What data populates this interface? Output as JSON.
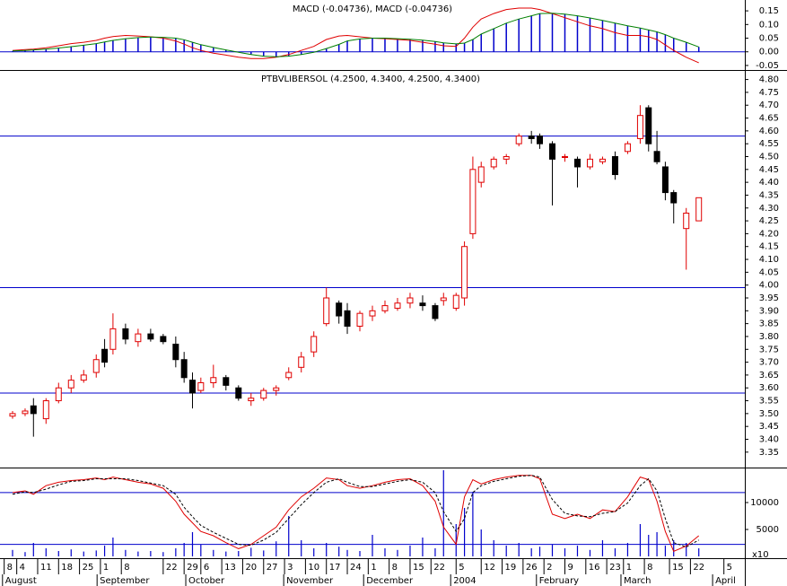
{
  "chart_data": [
    {
      "type": "macd",
      "title": "MACD (-0.04736), MACD (-0.04736)",
      "x": [
        0,
        3,
        5,
        8,
        11,
        14,
        17,
        20,
        22,
        24,
        27,
        30,
        33,
        36,
        39,
        41,
        43,
        45,
        48,
        51,
        54,
        57,
        60,
        63,
        66,
        69,
        72,
        75,
        78,
        80,
        83,
        86,
        89,
        92,
        95,
        98,
        101,
        103,
        106,
        108,
        110,
        112,
        115,
        118,
        121,
        124,
        126,
        129,
        132,
        135,
        138,
        141,
        144,
        147,
        150,
        152,
        154,
        156,
        158,
        161,
        164
      ],
      "series": [
        {
          "color": "#e00000",
          "values": [
            0.005,
            0.008,
            0.01,
            0.015,
            0.022,
            0.03,
            0.035,
            0.042,
            0.05,
            0.056,
            0.06,
            0.058,
            0.055,
            0.05,
            0.04,
            0.028,
            0.015,
            0.005,
            -0.005,
            -0.012,
            -0.02,
            -0.025,
            -0.025,
            -0.02,
            -0.01,
            0.005,
            0.02,
            0.045,
            0.058,
            0.06,
            0.055,
            0.05,
            0.048,
            0.045,
            0.042,
            0.035,
            0.028,
            0.022,
            0.02,
            0.05,
            0.09,
            0.12,
            0.14,
            0.155,
            0.16,
            0.16,
            0.155,
            0.14,
            0.125,
            0.11,
            0.095,
            0.085,
            0.07,
            0.06,
            0.06,
            0.055,
            0.045,
            0.025,
            0.005,
            -0.02,
            -0.04
          ]
        },
        {
          "color": "#008000",
          "histogram_color": "#0000cc",
          "values": [
            0.003,
            0.005,
            0.007,
            0.01,
            0.014,
            0.019,
            0.024,
            0.03,
            0.036,
            0.042,
            0.048,
            0.052,
            0.054,
            0.053,
            0.05,
            0.044,
            0.035,
            0.026,
            0.016,
            0.007,
            -0.002,
            -0.01,
            -0.016,
            -0.018,
            -0.016,
            -0.01,
            -0.002,
            0.012,
            0.027,
            0.04,
            0.047,
            0.05,
            0.05,
            0.048,
            0.046,
            0.043,
            0.038,
            0.033,
            0.029,
            0.032,
            0.045,
            0.065,
            0.085,
            0.105,
            0.12,
            0.132,
            0.14,
            0.141,
            0.138,
            0.132,
            0.124,
            0.115,
            0.105,
            0.095,
            0.087,
            0.08,
            0.073,
            0.063,
            0.05,
            0.035,
            0.018
          ]
        }
      ],
      "xlim": [
        -3,
        175
      ],
      "ylim": [
        -0.06,
        0.17
      ],
      "yticks": [
        0.15,
        {
          "value": 0.1,
          "label": "0.10"
        },
        0.05,
        {
          "value": 0,
          "label": "0.00"
        },
        -0.05
      ],
      "hlines": [
        0
      ],
      "hline_color": "#0000cc"
    },
    {
      "type": "candlestick",
      "title": "PTBVLIBERSOL (4.2500, 4.3400, 4.2500, 4.3400)",
      "x": [
        0,
        3,
        5,
        8,
        11,
        14,
        17,
        20,
        22,
        24,
        27,
        30,
        33,
        36,
        39,
        41,
        43,
        45,
        48,
        51,
        54,
        57,
        60,
        63,
        66,
        69,
        72,
        75,
        78,
        80,
        83,
        86,
        89,
        92,
        95,
        98,
        101,
        103,
        106,
        108,
        110,
        112,
        115,
        118,
        121,
        124,
        126,
        129,
        132,
        135,
        138,
        141,
        144,
        147,
        150,
        152,
        154,
        156,
        158,
        161,
        164
      ],
      "open": [
        3.49,
        3.5,
        3.53,
        3.48,
        3.55,
        3.6,
        3.63,
        3.66,
        3.75,
        3.75,
        3.83,
        3.78,
        3.81,
        3.8,
        3.77,
        3.71,
        3.63,
        3.59,
        3.62,
        3.64,
        3.6,
        3.55,
        3.56,
        3.59,
        3.64,
        3.68,
        3.74,
        3.85,
        3.93,
        3.9,
        3.84,
        3.88,
        3.9,
        3.91,
        3.93,
        3.93,
        3.92,
        3.94,
        3.91,
        3.95,
        4.2,
        4.4,
        4.46,
        4.49,
        4.55,
        4.58,
        4.58,
        4.55,
        4.5,
        4.49,
        4.46,
        4.48,
        4.5,
        4.52,
        4.57,
        4.69,
        4.52,
        4.46,
        4.36,
        4.22,
        4.25
      ],
      "high": [
        3.51,
        3.52,
        3.56,
        3.56,
        3.62,
        3.65,
        3.67,
        3.73,
        3.79,
        3.89,
        3.85,
        3.83,
        3.83,
        3.81,
        3.8,
        3.74,
        3.66,
        3.64,
        3.69,
        3.65,
        3.61,
        3.58,
        3.6,
        3.61,
        3.68,
        3.74,
        3.82,
        3.99,
        3.94,
        3.93,
        3.9,
        3.92,
        3.94,
        3.95,
        3.97,
        3.96,
        3.93,
        3.97,
        3.97,
        4.17,
        4.5,
        4.48,
        4.5,
        4.51,
        4.59,
        4.6,
        4.59,
        4.56,
        4.51,
        4.5,
        4.51,
        4.5,
        4.52,
        4.56,
        4.7,
        4.7,
        4.6,
        4.48,
        4.37,
        4.3,
        4.34
      ],
      "low": [
        3.48,
        3.49,
        3.41,
        3.46,
        3.54,
        3.58,
        3.62,
        3.64,
        3.68,
        3.73,
        3.77,
        3.76,
        3.78,
        3.77,
        3.68,
        3.62,
        3.52,
        3.58,
        3.6,
        3.59,
        3.55,
        3.53,
        3.55,
        3.57,
        3.63,
        3.66,
        3.72,
        3.84,
        3.85,
        3.81,
        3.82,
        3.86,
        3.89,
        3.9,
        3.91,
        3.9,
        3.86,
        3.92,
        3.9,
        3.92,
        4.18,
        4.38,
        4.45,
        4.47,
        4.54,
        4.55,
        4.53,
        4.31,
        4.48,
        4.38,
        4.45,
        4.47,
        4.41,
        4.51,
        4.55,
        4.52,
        4.47,
        4.33,
        4.24,
        4.06,
        4.25
      ],
      "close": [
        3.5,
        3.51,
        3.5,
        3.55,
        3.6,
        3.63,
        3.65,
        3.71,
        3.7,
        3.83,
        3.79,
        3.81,
        3.79,
        3.78,
        3.71,
        3.64,
        3.58,
        3.62,
        3.64,
        3.61,
        3.56,
        3.56,
        3.59,
        3.6,
        3.66,
        3.72,
        3.8,
        3.95,
        3.88,
        3.84,
        3.89,
        3.9,
        3.92,
        3.93,
        3.95,
        3.92,
        3.87,
        3.95,
        3.96,
        4.15,
        4.45,
        4.46,
        4.49,
        4.5,
        4.58,
        4.57,
        4.55,
        4.49,
        4.5,
        4.46,
        4.49,
        4.49,
        4.43,
        4.55,
        4.66,
        4.55,
        4.48,
        4.36,
        4.32,
        4.28,
        4.34
      ],
      "up_color": "#e00000",
      "down_color": "#000000",
      "xlim": [
        -3,
        175
      ],
      "ylim": [
        3.29,
        4.83
      ],
      "yticks": [
        {
          "value": 4.8,
          "label": "4.80"
        },
        4.75,
        {
          "value": 4.7,
          "label": "4.70"
        },
        4.65,
        {
          "value": 4.6,
          "label": "4.60"
        },
        4.55,
        {
          "value": 4.5,
          "label": "4.50"
        },
        4.45,
        {
          "value": 4.4,
          "label": "4.40"
        },
        4.35,
        {
          "value": 4.3,
          "label": "4.30"
        },
        4.25,
        {
          "value": 4.2,
          "label": "4.20"
        },
        4.15,
        {
          "value": 4.1,
          "label": "4.10"
        },
        4.05,
        {
          "value": 4.0,
          "label": "4.00"
        },
        3.95,
        {
          "value": 3.9,
          "label": "3.90"
        },
        3.85,
        {
          "value": 3.8,
          "label": "3.80"
        },
        3.75,
        {
          "value": 3.7,
          "label": "3.70"
        },
        3.65,
        {
          "value": 3.6,
          "label": "3.60"
        },
        3.55,
        {
          "value": 3.5,
          "label": "3.50"
        },
        3.45,
        {
          "value": 3.4,
          "label": "3.40"
        },
        3.35
      ],
      "hlines": [
        4.58,
        3.99,
        3.58
      ],
      "hline_color": "#0000cc"
    },
    {
      "type": "volume",
      "scale_label": "x10",
      "x": [
        0,
        3,
        5,
        8,
        11,
        14,
        17,
        20,
        22,
        24,
        27,
        30,
        33,
        36,
        39,
        41,
        43,
        45,
        48,
        51,
        54,
        57,
        60,
        63,
        66,
        69,
        72,
        75,
        78,
        80,
        83,
        86,
        89,
        92,
        95,
        98,
        101,
        103,
        106,
        108,
        110,
        112,
        115,
        118,
        121,
        124,
        126,
        129,
        132,
        135,
        138,
        141,
        144,
        147,
        150,
        152,
        154,
        156,
        158,
        161,
        164
      ],
      "values": [
        1200,
        800,
        2500,
        1500,
        1000,
        1300,
        900,
        1100,
        2000,
        3500,
        1200,
        900,
        1000,
        800,
        1500,
        2500,
        4500,
        2200,
        1200,
        900,
        1000,
        1600,
        1100,
        2800,
        7500,
        3000,
        1500,
        2500,
        1800,
        1200,
        1000,
        4000,
        1500,
        1200,
        2000,
        3500,
        1500,
        16000,
        6000,
        9000,
        12000,
        5000,
        3000,
        2000,
        2500,
        1500,
        1800,
        2200,
        1500,
        2000,
        1200,
        3000,
        1500,
        2500,
        6000,
        4000,
        4500,
        2000,
        3000,
        2500,
        1500
      ],
      "color": "#0000cc",
      "series": [
        {
          "axis": "y2",
          "color": "#e00000",
          "values": [
            80,
            82,
            78,
            88,
            92,
            94,
            95,
            97,
            95,
            98,
            95,
            92,
            90,
            85,
            70,
            55,
            45,
            35,
            30,
            22,
            15,
            20,
            30,
            40,
            60,
            75,
            85,
            97,
            95,
            88,
            85,
            88,
            92,
            95,
            96,
            88,
            70,
            40,
            20,
            75,
            95,
            90,
            95,
            98,
            100,
            100,
            96,
            55,
            50,
            55,
            50,
            60,
            58,
            75,
            98,
            95,
            70,
            35,
            12,
            18,
            30
          ]
        },
        {
          "axis": "y2",
          "color": "#000000",
          "dashed": true,
          "values": [
            78,
            81,
            80,
            84,
            89,
            93,
            94,
            96,
            96,
            96,
            96,
            94,
            91,
            88,
            78,
            63,
            52,
            42,
            34,
            27,
            20,
            19,
            25,
            34,
            50,
            66,
            80,
            92,
            96,
            92,
            87,
            87,
            90,
            93,
            95,
            92,
            80,
            58,
            35,
            50,
            80,
            88,
            93,
            96,
            99,
            100,
            98,
            72,
            56,
            53,
            52,
            56,
            58,
            68,
            88,
            96,
            82,
            50,
            22,
            17,
            25
          ]
        }
      ],
      "xlim": [
        -3,
        175
      ],
      "ylim": [
        0,
        16500
      ],
      "yticks": [
        10000,
        5000
      ],
      "y2lim": [
        4,
        108
      ],
      "hlines": [
        80,
        20
      ],
      "hline_color": "#0000cc",
      "xticks": [
        {
          "value": -2,
          "label": "8"
        },
        {
          "value": 1,
          "label": "4"
        },
        {
          "value": 6,
          "label": "11"
        },
        {
          "value": 11,
          "label": "18"
        },
        {
          "value": 16,
          "label": "25"
        },
        {
          "value": 21,
          "label": "1"
        },
        {
          "value": 26,
          "label": "8"
        },
        {
          "value": 36,
          "label": "22"
        },
        {
          "value": 41,
          "label": "29"
        },
        {
          "value": 45,
          "label": "6"
        },
        {
          "value": 50,
          "label": "13"
        },
        {
          "value": 55,
          "label": "20"
        },
        {
          "value": 60,
          "label": "27"
        },
        {
          "value": 65,
          "label": "3"
        },
        {
          "value": 70,
          "label": "10"
        },
        {
          "value": 75,
          "label": "17"
        },
        {
          "value": 80,
          "label": "24"
        },
        {
          "value": 85,
          "label": "1"
        },
        {
          "value": 90,
          "label": "8"
        },
        {
          "value": 95,
          "label": "15"
        },
        {
          "value": 100,
          "label": "22"
        },
        {
          "value": 106,
          "label": "5"
        },
        {
          "value": 112,
          "label": "12"
        },
        {
          "value": 117,
          "label": "19"
        },
        {
          "value": 122,
          "label": "26"
        },
        {
          "value": 127,
          "label": "2"
        },
        {
          "value": 132,
          "label": "9"
        },
        {
          "value": 137,
          "label": "16"
        },
        {
          "value": 142,
          "label": "23"
        },
        {
          "value": 146,
          "label": "1"
        },
        {
          "value": 151,
          "label": "8"
        },
        {
          "value": 157,
          "label": "15"
        },
        {
          "value": 162,
          "label": "22"
        },
        {
          "value": 170,
          "label": "5"
        }
      ],
      "month_labels": [
        {
          "value": -2.4,
          "label": "August"
        },
        {
          "value": 20.2,
          "label": "September"
        },
        {
          "value": 41.4,
          "label": "October"
        },
        {
          "value": 64.8,
          "label": "November"
        },
        {
          "value": 83.9,
          "label": "December"
        },
        {
          "value": 104.7,
          "label": "2004"
        },
        {
          "value": 125.2,
          "label": "February"
        },
        {
          "value": 145.4,
          "label": "March"
        },
        {
          "value": 167.3,
          "label": "April"
        }
      ]
    }
  ]
}
